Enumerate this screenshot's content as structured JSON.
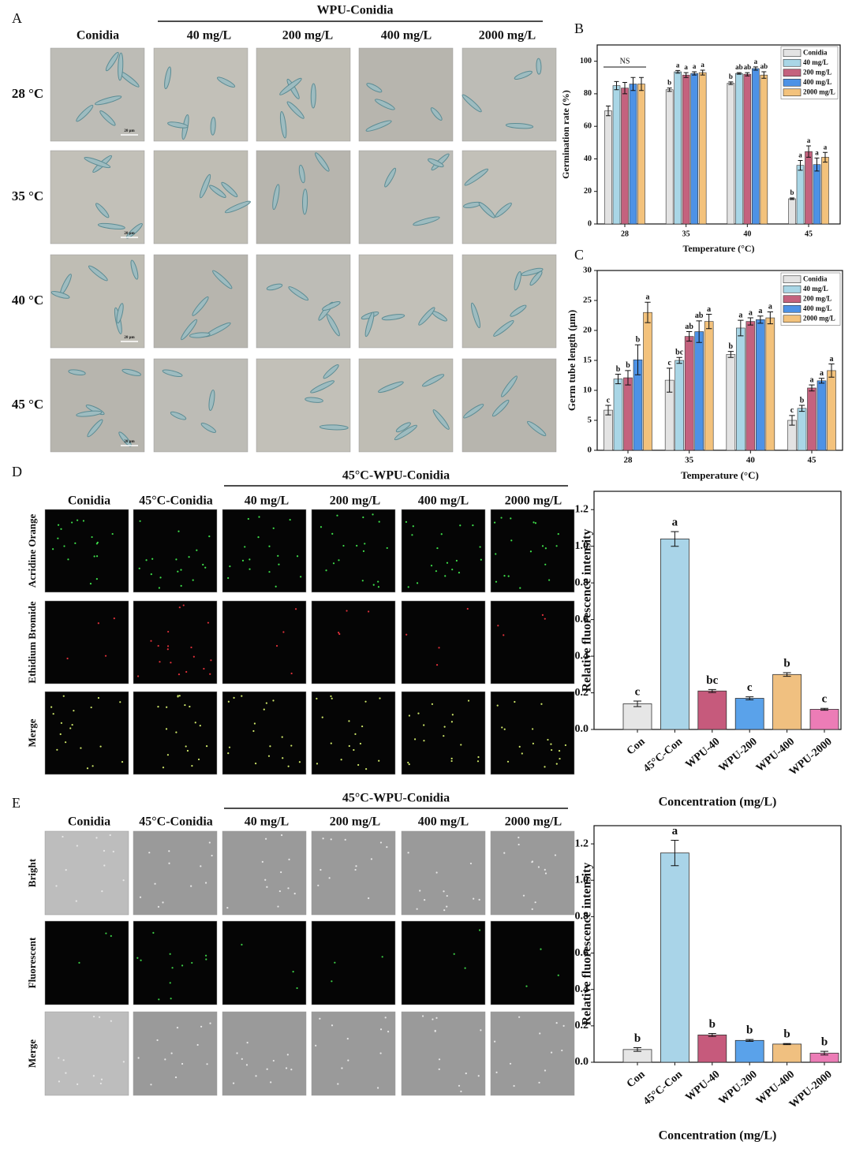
{
  "panels": [
    {
      "label": "A",
      "group_title": "WPU-Conidia",
      "columns": [
        "Conidia",
        "40 mg/L",
        "200 mg/L",
        "400 mg/L",
        "2000 mg/L"
      ],
      "rows": [
        "28 °C",
        "35 °C",
        "40 °C",
        "45 °C"
      ],
      "scale_bar": "20 μm"
    },
    {
      "label": "D",
      "group_title": "45°C-WPU-Conidia",
      "columns": [
        "Conidia",
        "45°C-Conidia",
        "40 mg/L",
        "200 mg/L",
        "400 mg/L",
        "2000 mg/L"
      ],
      "rows": [
        "Acridine Orange",
        "Ethidium Bromide",
        "Merge"
      ]
    },
    {
      "label": "E",
      "group_title": "45°C-WPU-Conidia",
      "columns": [
        "Conidia",
        "45°C-Conidia",
        "40 mg/L",
        "200 mg/L",
        "400 mg/L",
        "2000 mg/L"
      ],
      "rows": [
        "Bright",
        "Fluorescent",
        "Merge"
      ]
    }
  ],
  "chart_data": [
    {
      "type": "grouped_bar",
      "label": "B",
      "x_label": "Temperature (°C)",
      "y_label": "Germination rate (%)",
      "categories": [
        "28",
        "35",
        "40",
        "45"
      ],
      "ylim": [
        0,
        110
      ],
      "yticks": [
        0,
        20,
        40,
        60,
        80,
        100
      ],
      "annotation": "NS",
      "legend": "top-right",
      "series": [
        {
          "name": "Conidia",
          "color": "#e3e3e3",
          "values": [
            69.5,
            82.5,
            86.5,
            15.5
          ],
          "errors": [
            3,
            1,
            0.8,
            0.5
          ],
          "letters": [
            null,
            "b",
            "b",
            "b"
          ]
        },
        {
          "name": "40 mg/L",
          "color": "#a9d6e6",
          "values": [
            85,
            93.5,
            92.5,
            36
          ],
          "errors": [
            2.5,
            0.8,
            0.5,
            3
          ],
          "letters": [
            null,
            "a",
            "ab",
            "a"
          ]
        },
        {
          "name": "200 mg/L",
          "color": "#c4627e",
          "values": [
            83.5,
            91.5,
            92,
            44.5
          ],
          "errors": [
            3.5,
            1.5,
            1,
            3.5
          ],
          "letters": [
            null,
            "a",
            "ab",
            "a"
          ]
        },
        {
          "name": "400 mg/L",
          "color": "#4d92e6",
          "values": [
            86,
            92.5,
            95.5,
            36.5
          ],
          "errors": [
            4,
            1,
            1,
            4
          ],
          "letters": [
            null,
            "a",
            "a",
            "a"
          ]
        },
        {
          "name": "2000 mg/L",
          "color": "#f3c27c",
          "values": [
            86,
            93,
            91.5,
            41
          ],
          "errors": [
            4,
            1.5,
            2,
            3
          ],
          "letters": [
            null,
            "a",
            "ab",
            "a"
          ]
        }
      ]
    },
    {
      "type": "grouped_bar",
      "label": "C",
      "x_label": "Temperature (°C)",
      "y_label": "Germ tube length (μm)",
      "categories": [
        "28",
        "35",
        "40",
        "45"
      ],
      "ylim": [
        0,
        30
      ],
      "yticks": [
        0,
        5,
        10,
        15,
        20,
        25,
        30
      ],
      "legend": "top-right",
      "series": [
        {
          "name": "Conidia",
          "color": "#e3e3e3",
          "values": [
            6.7,
            11.7,
            16,
            5
          ],
          "errors": [
            0.8,
            2,
            0.5,
            0.8
          ],
          "letters": [
            "c",
            "c",
            "b",
            "c"
          ]
        },
        {
          "name": "40 mg/L",
          "color": "#a9d6e6",
          "values": [
            11.9,
            15,
            20.4,
            7
          ],
          "errors": [
            0.8,
            0.5,
            1.3,
            0.5
          ],
          "letters": [
            "b",
            "bc",
            "a",
            "b"
          ]
        },
        {
          "name": "200 mg/L",
          "color": "#c4627e",
          "values": [
            12.1,
            19,
            21.5,
            10.4
          ],
          "errors": [
            1.2,
            0.8,
            0.6,
            0.5
          ],
          "letters": [
            "b",
            "ab",
            "a",
            "a"
          ]
        },
        {
          "name": "400 mg/L",
          "color": "#4d92e6",
          "values": [
            15.1,
            19.8,
            21.8,
            11.6
          ],
          "errors": [
            2.5,
            1.8,
            0.6,
            0.4
          ],
          "letters": [
            "b",
            "ab",
            "a",
            "a"
          ]
        },
        {
          "name": "2000 mg/L",
          "color": "#f3c27c",
          "values": [
            23,
            21.5,
            22.1,
            13.3
          ],
          "errors": [
            1.7,
            1.2,
            1,
            1.1
          ],
          "letters": [
            "a",
            "a",
            "a",
            "a"
          ]
        }
      ]
    },
    {
      "type": "bar",
      "x_label": "Concentration (mg/L)",
      "y_label": "Relative fluorescence intensity",
      "categories": [
        "Con",
        "45°C-Con",
        "WPU-40",
        "WPU-200",
        "WPU-400",
        "WPU-2000"
      ],
      "values": [
        0.14,
        1.04,
        0.21,
        0.17,
        0.3,
        0.11
      ],
      "errors": [
        0.015,
        0.04,
        0.008,
        0.008,
        0.01,
        0.005
      ],
      "letters": [
        "c",
        "a",
        "bc",
        "c",
        "b",
        "c"
      ],
      "colors": [
        "#e6e6e6",
        "#a9d4e8",
        "#c65a7c",
        "#5aa2ea",
        "#f0c080",
        "#ec7cb6"
      ],
      "ylim": [
        0,
        1.3
      ],
      "yticks": [
        {
          "value": 0,
          "label": "0.0"
        },
        0.2,
        0.4,
        0.6,
        0.8,
        {
          "value": 1,
          "label": "1.0"
        },
        1.2
      ]
    },
    {
      "type": "bar",
      "x_label": "Concentration (mg/L)",
      "y_label": "Relative fluorescence intensity",
      "categories": [
        "Con",
        "45°C-Con",
        "WPU-40",
        "WPU-200",
        "WPU-400",
        "WPU-2000"
      ],
      "values": [
        0.07,
        1.15,
        0.15,
        0.12,
        0.1,
        0.05
      ],
      "errors": [
        0.01,
        0.07,
        0.008,
        0.005,
        0.003,
        0.01
      ],
      "letters": [
        "b",
        "a",
        "b",
        "b",
        "b",
        "b"
      ],
      "colors": [
        "#e6e6e6",
        "#a9d4e8",
        "#c65a7c",
        "#5aa2ea",
        "#f0c080",
        "#ec7cb6"
      ],
      "ylim": [
        0,
        1.3
      ],
      "yticks": [
        {
          "value": 0,
          "label": "0.0"
        },
        0.2,
        0.4,
        0.6,
        0.8,
        {
          "value": 1,
          "label": "1.0"
        },
        1.2
      ]
    }
  ]
}
